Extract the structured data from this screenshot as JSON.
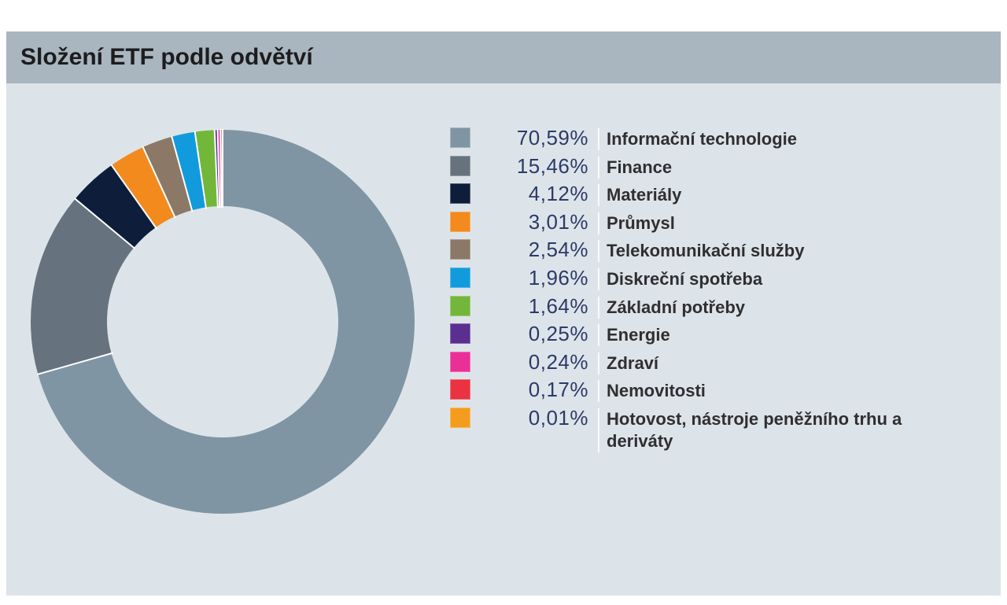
{
  "header": {
    "title": "Složení ETF podle odvětví"
  },
  "colors": {
    "page_bg": "#ffffff",
    "header_bg": "#a9b5bf",
    "header_text": "#1c1c1e",
    "panel_bg": "#dde4e9",
    "percent_text": "#2c3a68",
    "label_text": "#2f2f31",
    "slice_gap": "#ffffff"
  },
  "chart_data": {
    "type": "pie",
    "donut": true,
    "title": "Složení ETF podle odvětví",
    "categories": [
      "Informační technologie",
      "Finance",
      "Materiály",
      "Průmysl",
      "Telekomunikační služby",
      "Diskreční spotřeba",
      "Základní potřeby",
      "Energie",
      "Zdraví",
      "Nemovitosti",
      "Hotovost, nástroje peněžního trhu a deriváty"
    ],
    "values": [
      70.59,
      15.46,
      4.12,
      3.01,
      2.54,
      1.96,
      1.64,
      0.25,
      0.24,
      0.17,
      0.01
    ],
    "percent_labels": [
      "70,59%",
      "15,46%",
      "4,12%",
      "3,01%",
      "2,54%",
      "1,96%",
      "1,64%",
      "0,25%",
      "0,24%",
      "0,17%",
      "0,01%"
    ],
    "colors": [
      "#7f95a4",
      "#66737e",
      "#0d1d3a",
      "#f28a1e",
      "#8b7866",
      "#119bdc",
      "#72b73a",
      "#5a2f90",
      "#ea2f96",
      "#ea3240",
      "#f39c1d"
    ],
    "start_angle_deg": 0,
    "direction": "clockwise",
    "inner_radius_ratio": 0.6,
    "legend_position": "right",
    "xlabel": "",
    "ylabel": ""
  }
}
